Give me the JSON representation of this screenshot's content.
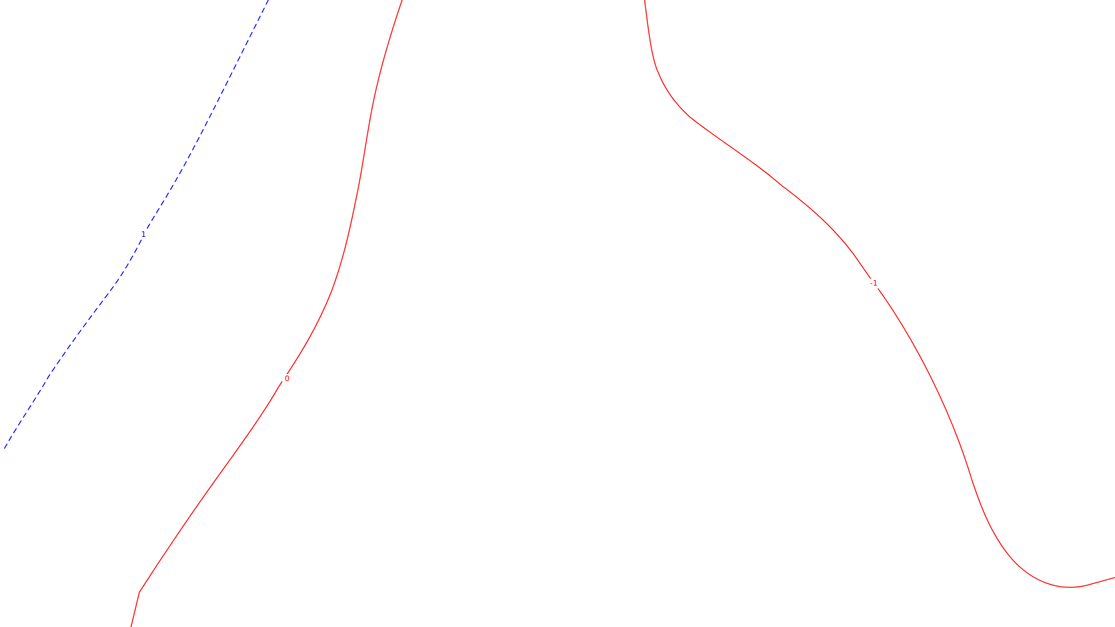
{
  "contours": [
    {
      "id": "contour-1",
      "level_label": "1",
      "color": "#0000ff",
      "style": "dashed"
    },
    {
      "id": "contour-0",
      "level_label": "0",
      "color": "#ff0000",
      "style": "solid"
    },
    {
      "id": "contour-neg1",
      "level_label": "-1",
      "color": "#ff0000",
      "style": "solid"
    }
  ]
}
